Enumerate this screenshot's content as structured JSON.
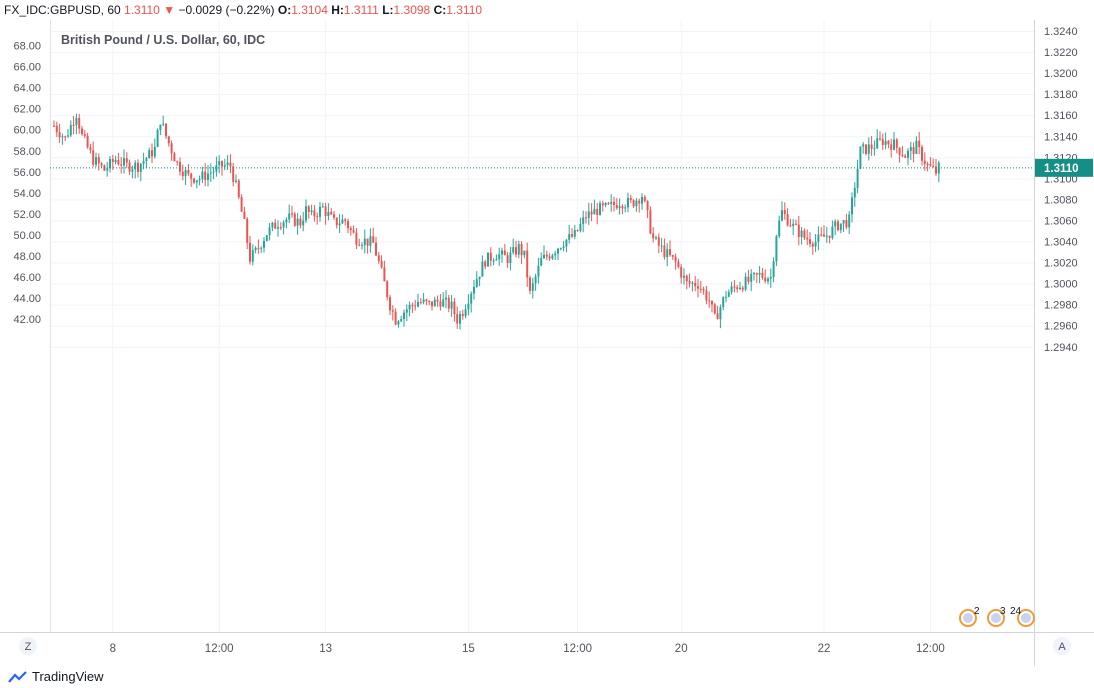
{
  "header": {
    "symbol": "FX_IDC:GBPUSD, 60",
    "last": "1.3110",
    "change_arrow": "triangle-down-icon",
    "change": "−0.0029 (−0.22%)",
    "o_label": "O:",
    "o_value": "1.3104",
    "h_label": "H:",
    "h_value": "1.3111",
    "l_label": "L:",
    "l_value": "1.3098",
    "c_label": "C:",
    "c_value": "1.3110"
  },
  "colors": {
    "up": "#26a69a",
    "down": "#ef5350",
    "last_price_bg": "#138f86"
  },
  "footer": {
    "brand": "TradingView",
    "left_button": "Z",
    "right_button": "A"
  },
  "events": [
    {
      "label": "2"
    },
    {
      "label": "3"
    },
    {
      "label": "24"
    }
  ],
  "chart_data": {
    "type": "candlestick",
    "title": "British Pound / U.S. Dollar, 60, IDC",
    "right_axis": {
      "ticks": [
        "1.3240",
        "1.3220",
        "1.3200",
        "1.3180",
        "1.3160",
        "1.3140",
        "1.3120",
        "1.3100",
        "1.3080",
        "1.3060",
        "1.3040",
        "1.3020",
        "1.3000",
        "1.2980",
        "1.2960",
        "1.2940"
      ],
      "range": [
        1.2928,
        1.3248
      ]
    },
    "left_axis": {
      "ticks": [
        "68.00",
        "66.00",
        "64.00",
        "62.00",
        "60.00",
        "58.00",
        "56.00",
        "54.00",
        "52.00",
        "50.00",
        "48.00",
        "46.00",
        "44.00",
        "42.00"
      ],
      "range": [
        40.85,
        69.05
      ]
    },
    "x_ticks": [
      "8",
      "12:00",
      "13",
      "15",
      "12:00",
      "20",
      "22",
      "12:00"
    ],
    "last_price": "1.3110",
    "grid": true,
    "path_keypoints": [
      [
        0,
        1.315
      ],
      [
        4,
        1.3138
      ],
      [
        8,
        1.3162
      ],
      [
        10,
        1.314
      ],
      [
        14,
        1.3118
      ],
      [
        18,
        1.3108
      ],
      [
        22,
        1.3118
      ],
      [
        26,
        1.3112
      ],
      [
        30,
        1.3112
      ],
      [
        34,
        1.3122
      ],
      [
        36,
        1.3128
      ],
      [
        38,
        1.3156
      ],
      [
        40,
        1.314
      ],
      [
        44,
        1.3114
      ],
      [
        48,
        1.3102
      ],
      [
        52,
        1.31
      ],
      [
        56,
        1.3106
      ],
      [
        60,
        1.3112
      ],
      [
        63,
        1.3112
      ],
      [
        65,
        1.3092
      ],
      [
        68,
        1.3056
      ],
      [
        70,
        1.3024
      ],
      [
        72,
        1.303
      ],
      [
        76,
        1.3048
      ],
      [
        80,
        1.3058
      ],
      [
        84,
        1.3062
      ],
      [
        88,
        1.3058
      ],
      [
        90,
        1.307
      ],
      [
        92,
        1.3064
      ],
      [
        96,
        1.3072
      ],
      [
        100,
        1.3058
      ],
      [
        104,
        1.306
      ],
      [
        106,
        1.305
      ],
      [
        108,
        1.3043
      ],
      [
        112,
        1.304
      ],
      [
        114,
        1.3038
      ],
      [
        116,
        1.302
      ],
      [
        118,
        1.3
      ],
      [
        120,
        1.298
      ],
      [
        122,
        1.2966
      ],
      [
        126,
        1.2976
      ],
      [
        130,
        1.2983
      ],
      [
        134,
        1.298
      ],
      [
        138,
        1.2984
      ],
      [
        142,
        1.2978
      ],
      [
        144,
        1.2966
      ],
      [
        146,
        1.2974
      ],
      [
        150,
        1.3
      ],
      [
        154,
        1.3022
      ],
      [
        158,
        1.3028
      ],
      [
        162,
        1.3024
      ],
      [
        166,
        1.3034
      ],
      [
        168,
        1.3026
      ],
      [
        170,
        1.299
      ],
      [
        174,
        1.3022
      ],
      [
        178,
        1.303
      ],
      [
        182,
        1.304
      ],
      [
        186,
        1.3046
      ],
      [
        190,
        1.3064
      ],
      [
        194,
        1.307
      ],
      [
        198,
        1.3072
      ],
      [
        202,
        1.3078
      ],
      [
        206,
        1.3076
      ],
      [
        210,
        1.3084
      ],
      [
        212,
        1.3064
      ],
      [
        214,
        1.3042
      ],
      [
        218,
        1.303
      ],
      [
        222,
        1.302
      ],
      [
        226,
        1.3
      ],
      [
        230,
        1.3
      ],
      [
        234,
        1.2984
      ],
      [
        236,
        1.2966
      ],
      [
        240,
        1.299
      ],
      [
        244,
        1.2998
      ],
      [
        248,
        1.3002
      ],
      [
        252,
        1.3008
      ],
      [
        256,
        1.3006
      ],
      [
        258,
        1.3048
      ],
      [
        260,
        1.3068
      ],
      [
        264,
        1.3054
      ],
      [
        268,
        1.3044
      ],
      [
        272,
        1.304
      ],
      [
        276,
        1.3046
      ],
      [
        280,
        1.3056
      ],
      [
        284,
        1.306
      ],
      [
        286,
        1.3094
      ],
      [
        288,
        1.3126
      ],
      [
        292,
        1.313
      ],
      [
        296,
        1.3136
      ],
      [
        300,
        1.3132
      ],
      [
        304,
        1.3122
      ],
      [
        308,
        1.313
      ],
      [
        312,
        1.3112
      ],
      [
        315,
        1.3106
      ],
      [
        316,
        1.311
      ]
    ]
  }
}
